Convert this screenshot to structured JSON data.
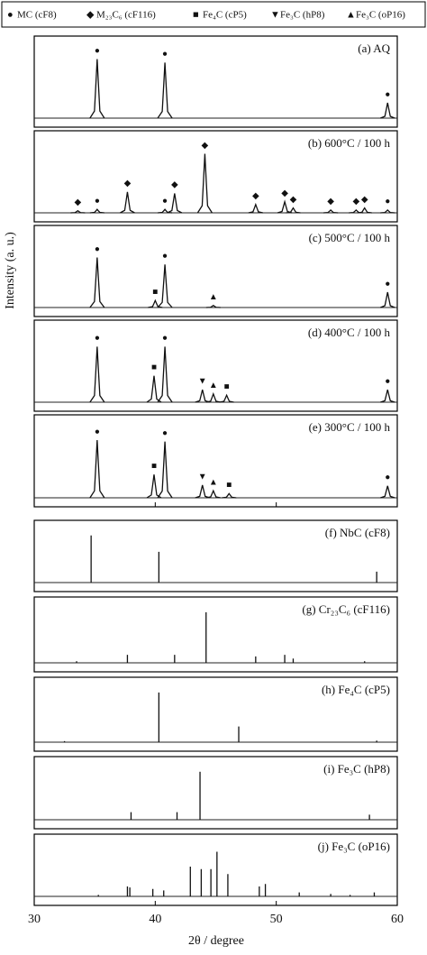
{
  "chart_data": {
    "type": "xrd-stack",
    "legend": [
      {
        "symbol": "●",
        "label": "MC (cF8)"
      },
      {
        "symbol": "◆",
        "label": "M₂₃C₆ (cF116)"
      },
      {
        "symbol": "■",
        "label": "Fe₄C (cP5)"
      },
      {
        "symbol": "▼",
        "label": "Fe₃C (hP8)"
      },
      {
        "symbol": "▲",
        "label": "Fe₃C (oP16)"
      }
    ],
    "ylabel": "Intensity (a. u.)",
    "xlabel": "2θ / degree",
    "xlim": [
      30,
      60
    ],
    "xticks": [
      30,
      40,
      50,
      60
    ],
    "panels": [
      {
        "type": "pattern",
        "label": "(a) AQ",
        "ylim": [
          0,
          100
        ],
        "peaks": {
          "x": [
            35.2,
            40.8,
            59.2
          ],
          "y": [
            85,
            80,
            22
          ],
          "symbol": [
            "●",
            "●",
            "●"
          ]
        }
      },
      {
        "type": "pattern",
        "label": "(b) 600°C / 100 h",
        "ylim": [
          0,
          100
        ],
        "peaks": {
          "x": [
            33.6,
            35.2,
            37.7,
            40.8,
            41.6,
            44.1,
            48.3,
            50.7,
            51.4,
            54.5,
            56.6,
            57.3,
            59.2
          ],
          "y": [
            3,
            5,
            30,
            5,
            28,
            85,
            12,
            16,
            7,
            4,
            4,
            7,
            4
          ],
          "symbol": [
            "◆",
            "●",
            "◆",
            "●",
            "◆",
            "◆",
            "◆",
            "◆",
            "◆",
            "◆",
            "◆",
            "◆",
            "●"
          ]
        }
      },
      {
        "type": "pattern",
        "label": "(c) 500°C / 100 h",
        "ylim": [
          0,
          100
        ],
        "peaks": {
          "x": [
            35.2,
            40.0,
            40.8,
            44.8,
            59.2
          ],
          "y": [
            72,
            10,
            62,
            3,
            22
          ],
          "symbol": [
            "●",
            "■",
            "●",
            "▲",
            "●"
          ]
        }
      },
      {
        "type": "pattern",
        "label": "(d) 400°C / 100 h",
        "ylim": [
          0,
          100
        ],
        "peaks": {
          "x": [
            35.2,
            39.9,
            40.8,
            43.9,
            44.8,
            45.9,
            59.2
          ],
          "y": [
            80,
            38,
            80,
            18,
            12,
            10,
            18
          ],
          "symbol": [
            "●",
            "■",
            "●",
            "▼",
            "▲",
            "■",
            "●"
          ]
        }
      },
      {
        "type": "pattern",
        "label": "(e) 300°C / 100 h",
        "ylim": [
          0,
          100
        ],
        "peaks": {
          "x": [
            35.2,
            39.9,
            40.8,
            43.9,
            44.8,
            46.1,
            59.2
          ],
          "y": [
            82,
            33,
            80,
            18,
            10,
            6,
            17
          ],
          "symbol": [
            "●",
            "■",
            "●",
            "▼",
            "▲",
            "■",
            "●"
          ]
        }
      },
      {
        "type": "stick",
        "label": "(f) NbC (cF8)",
        "ylim": [
          0,
          100
        ],
        "peaks": {
          "x": [
            34.7,
            40.3,
            58.3
          ],
          "y": [
            95,
            62,
            22
          ]
        }
      },
      {
        "type": "stick",
        "label": "(g) Cr₂₃C₆ (cF116)",
        "ylim": [
          0,
          100
        ],
        "peaks": {
          "x": [
            33.5,
            37.7,
            41.6,
            44.2,
            48.3,
            50.7,
            51.4,
            57.3
          ],
          "y": [
            3,
            15,
            15,
            95,
            12,
            15,
            8,
            3
          ]
        }
      },
      {
        "type": "stick",
        "label": "(h) Fe₄C (cP5)",
        "ylim": [
          0,
          100
        ],
        "peaks": {
          "x": [
            32.5,
            40.3,
            46.9,
            58.3
          ],
          "y": [
            2,
            95,
            30,
            3
          ]
        }
      },
      {
        "type": "stick",
        "label": "(i) Fe₃C (hP8)",
        "ylim": [
          0,
          100
        ],
        "peaks": {
          "x": [
            38.0,
            41.8,
            43.7,
            57.7
          ],
          "y": [
            15,
            15,
            95,
            10
          ]
        }
      },
      {
        "type": "stick",
        "label": "(j) Fe₃C (oP16)",
        "ylim": [
          0,
          100
        ],
        "peaks": {
          "x": [
            35.3,
            37.7,
            37.9,
            39.8,
            40.7,
            42.9,
            43.8,
            44.6,
            45.1,
            46.0,
            48.6,
            49.1,
            51.9,
            54.5,
            56.1,
            58.1
          ],
          "y": [
            3,
            20,
            18,
            15,
            12,
            60,
            55,
            55,
            90,
            45,
            20,
            25,
            8,
            5,
            3,
            8
          ]
        }
      }
    ]
  }
}
